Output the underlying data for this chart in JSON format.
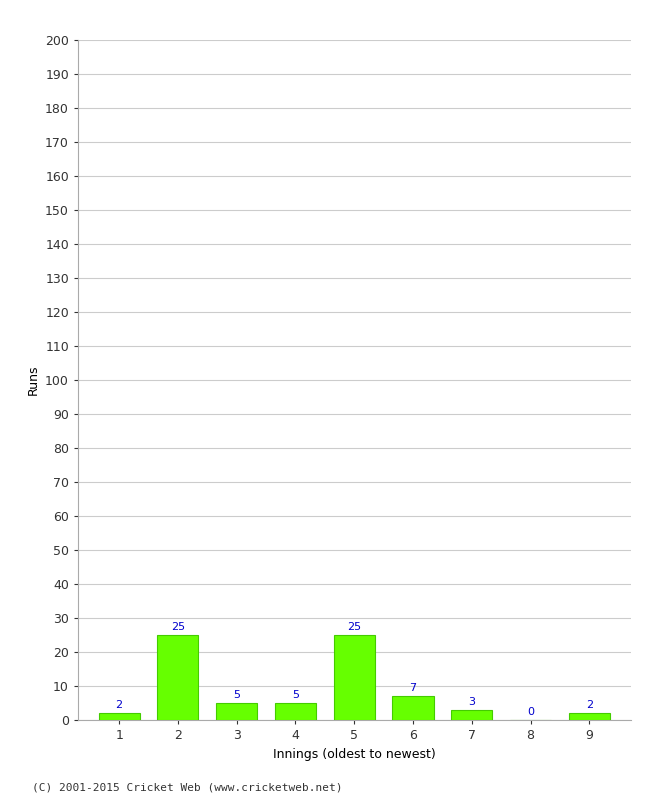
{
  "categories": [
    "1",
    "2",
    "3",
    "4",
    "5",
    "6",
    "7",
    "8",
    "9"
  ],
  "values": [
    2,
    25,
    5,
    5,
    25,
    7,
    3,
    0,
    2
  ],
  "bar_color": "#66ff00",
  "bar_edge_color": "#44cc00",
  "label_color": "#0000cc",
  "ylabel": "Runs",
  "xlabel": "Innings (oldest to newest)",
  "ylim": [
    0,
    200
  ],
  "yticks": [
    0,
    10,
    20,
    30,
    40,
    50,
    60,
    70,
    80,
    90,
    100,
    110,
    120,
    130,
    140,
    150,
    160,
    170,
    180,
    190,
    200
  ],
  "footer": "(C) 2001-2015 Cricket Web (www.cricketweb.net)",
  "background_color": "#ffffff",
  "grid_color": "#cccccc"
}
